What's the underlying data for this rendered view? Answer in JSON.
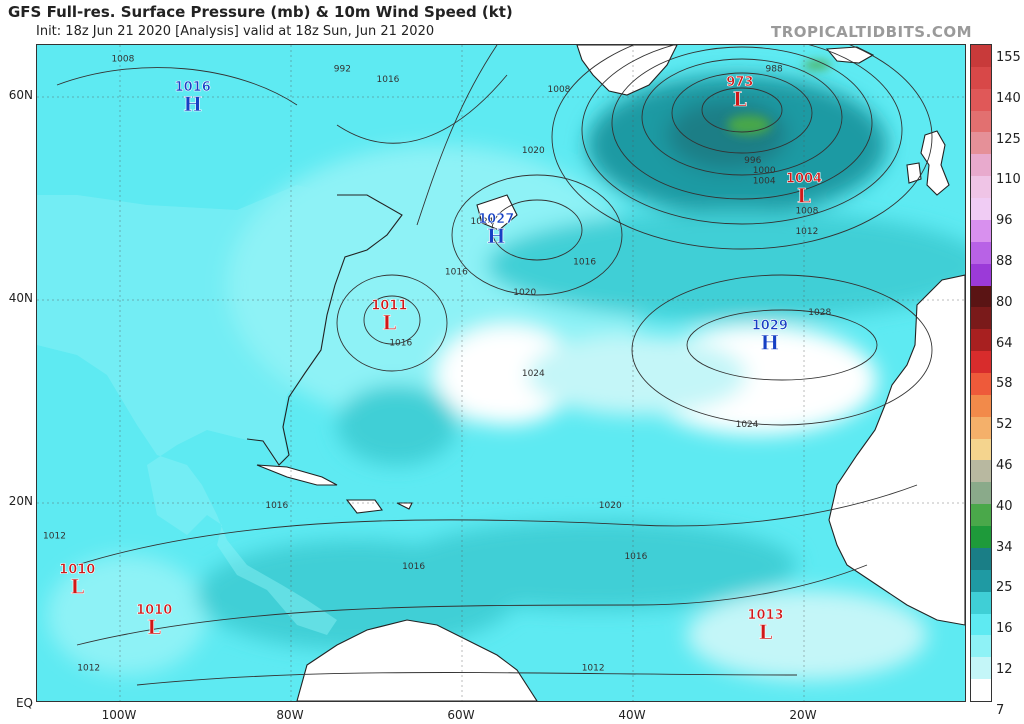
{
  "header": {
    "title": "GFS Full-res. Surface Pressure (mb) & 10m Wind Speed (kt)",
    "subtitle": "Init: 18z Jun 21 2020  [Analysis]   valid at 18z Sun, Jun 21 2020",
    "brand": "TROPICALTIDBITS.COM"
  },
  "axes": {
    "lat_labels": [
      "60N",
      "40N",
      "20N",
      "EQ"
    ],
    "lon_labels": [
      "100W",
      "80W",
      "60W",
      "40W",
      "20W"
    ]
  },
  "colors": {
    "land": "#ffffff",
    "calm": "#c4f6f8",
    "light": "#5eeaf2",
    "medium": "#3fcfd6",
    "strong": "#1f9aa3",
    "gale": "#1a7e86",
    "high_marker": "#1640c4",
    "low_marker": "#d01818"
  },
  "colorbar": {
    "label": "10m Wind Speed (kt)",
    "ticks": [
      "155",
      "140",
      "125",
      "110",
      "96",
      "88",
      "80",
      "64",
      "58",
      "52",
      "46",
      "40",
      "34",
      "25",
      "16",
      "12",
      "7"
    ],
    "colors": [
      "#c83a3a",
      "#d84848",
      "#e05858",
      "#e27070",
      "#e59098",
      "#e8aacd",
      "#efc4e6",
      "#f0ccf4",
      "#d890ee",
      "#b862e6",
      "#9b3ad8",
      "#5a1414",
      "#7a1a1a",
      "#a82020",
      "#d82c2c",
      "#ee5a3a",
      "#f28a4a",
      "#f4b06a",
      "#f4d48e",
      "#b8b8a0",
      "#8aaa8a",
      "#4aa84a",
      "#1e9a3a",
      "#1a7e86",
      "#1f9aa3",
      "#3fcfd6",
      "#5eeaf2",
      "#8ef2f6",
      "#c4f6f8",
      "#ffffff"
    ]
  },
  "pressure_systems": [
    {
      "type": "H",
      "value": "1016",
      "lon": -91.5,
      "lat": 59.0
    },
    {
      "type": "L",
      "value": "973",
      "lon": -27.5,
      "lat": 59.5
    },
    {
      "type": "H",
      "value": "1027",
      "lon": -56.0,
      "lat": 46.0
    },
    {
      "type": "L",
      "value": "1004",
      "lon": -20.0,
      "lat": 50.0
    },
    {
      "type": "L",
      "value": "1011",
      "lon": -68.5,
      "lat": 37.5
    },
    {
      "type": "H",
      "value": "1029",
      "lon": -24.0,
      "lat": 35.5
    },
    {
      "type": "L",
      "value": "1010",
      "lon": -105.0,
      "lat": 11.5
    },
    {
      "type": "L",
      "value": "1010",
      "lon": -96.0,
      "lat": 7.5
    },
    {
      "type": "L",
      "value": "1013",
      "lon": -24.5,
      "lat": 7.0
    }
  ],
  "isobar_labels": [
    {
      "text": "1008",
      "lon": -101,
      "lat": 63.5
    },
    {
      "text": "992",
      "lon": -75,
      "lat": 62.5
    },
    {
      "text": "1016",
      "lon": -70,
      "lat": 61.5
    },
    {
      "text": "1008",
      "lon": -50,
      "lat": 60.5
    },
    {
      "text": "1020",
      "lon": -53,
      "lat": 54.5
    },
    {
      "text": "1024",
      "lon": -59,
      "lat": 47.5
    },
    {
      "text": "1016",
      "lon": -62,
      "lat": 42.5
    },
    {
      "text": "1020",
      "lon": -54,
      "lat": 40.5
    },
    {
      "text": "1016",
      "lon": -68.5,
      "lat": 35.5
    },
    {
      "text": "1024",
      "lon": -53,
      "lat": 32.5
    },
    {
      "text": "1016",
      "lon": -47,
      "lat": 43.5
    },
    {
      "text": "1012",
      "lon": -21,
      "lat": 46.5
    },
    {
      "text": "1008",
      "lon": -21,
      "lat": 48.5
    },
    {
      "text": "1004",
      "lon": -26,
      "lat": 51.5
    },
    {
      "text": "1000",
      "lon": -26,
      "lat": 52.5
    },
    {
      "text": "996",
      "lon": -27,
      "lat": 53.5
    },
    {
      "text": "988",
      "lon": -24.5,
      "lat": 62.5
    },
    {
      "text": "1028",
      "lon": -19.5,
      "lat": 38.5
    },
    {
      "text": "1024",
      "lon": -28,
      "lat": 27.5
    },
    {
      "text": "1020",
      "lon": -44,
      "lat": 19.5
    },
    {
      "text": "1016",
      "lon": -83,
      "lat": 19.5
    },
    {
      "text": "1016",
      "lon": -67,
      "lat": 13.5
    },
    {
      "text": "1016",
      "lon": -41,
      "lat": 14.5
    },
    {
      "text": "1012",
      "lon": -109,
      "lat": 16.5
    },
    {
      "text": "1012",
      "lon": -105,
      "lat": 3.5
    },
    {
      "text": "1012",
      "lon": -46,
      "lat": 3.5
    }
  ]
}
